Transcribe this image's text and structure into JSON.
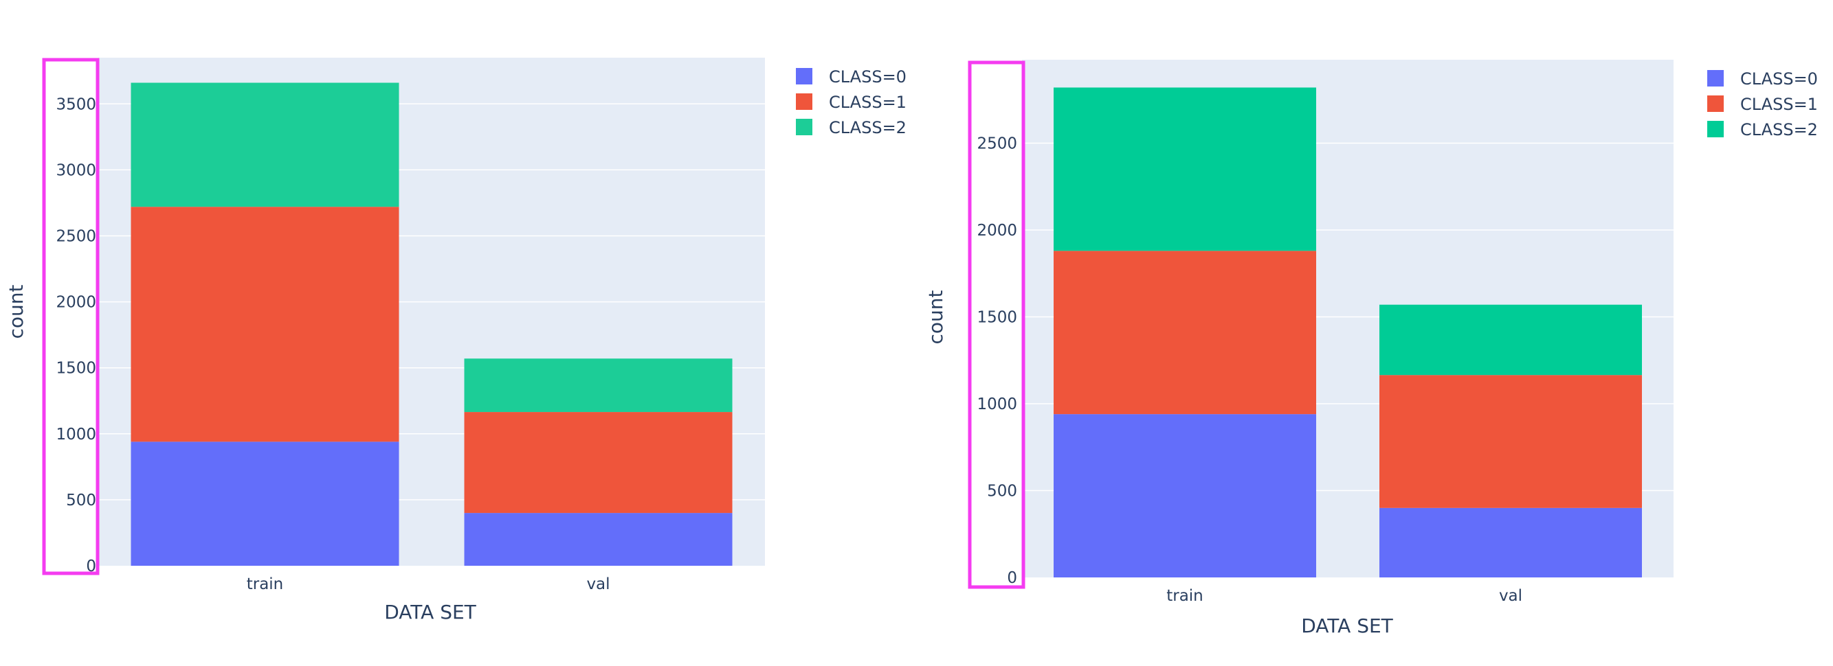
{
  "colors": {
    "background": "#ffffff",
    "plot_bg": "#e5ecf6",
    "grid": "#ffffff",
    "text": "#2a3f5f",
    "highlight": "#f43cf0",
    "left_class": [
      "#636efa",
      "#ef553b",
      "#1ccd97"
    ],
    "right_class": [
      "#636efa",
      "#ef553b",
      "#00cc96"
    ]
  },
  "chart_data": [
    {
      "type": "bar",
      "stacked": true,
      "categories": [
        "train",
        "val"
      ],
      "series": [
        {
          "name": "CLASS=0",
          "values": [
            940,
            400
          ]
        },
        {
          "name": "CLASS=1",
          "values": [
            1780,
            765
          ]
        },
        {
          "name": "CLASS=2",
          "values": [
            940,
            405
          ]
        }
      ],
      "xlabel": "DATA SET",
      "ylabel": "count",
      "ylim": [
        0,
        3850
      ],
      "yticks": [
        0,
        500,
        1000,
        1500,
        2000,
        2500,
        3000,
        3500
      ],
      "grid": true,
      "legend_position": "top-right",
      "highlight_box": "y-axis tick labels"
    },
    {
      "type": "bar",
      "stacked": true,
      "categories": [
        "train",
        "val"
      ],
      "series": [
        {
          "name": "CLASS=0",
          "values": [
            940,
            400
          ]
        },
        {
          "name": "CLASS=1",
          "values": [
            940,
            765
          ]
        },
        {
          "name": "CLASS=2",
          "values": [
            940,
            405
          ]
        }
      ],
      "xlabel": "DATA SET",
      "ylabel": "count",
      "ylim": [
        0,
        2980
      ],
      "yticks": [
        0,
        500,
        1000,
        1500,
        2000,
        2500
      ],
      "grid": true,
      "legend_position": "top-right",
      "highlight_box": "y-axis tick labels"
    }
  ]
}
